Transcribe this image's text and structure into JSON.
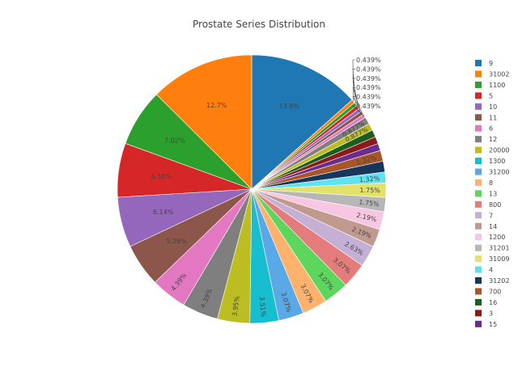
{
  "chart_data": {
    "type": "pie",
    "title": "Prostate Series Distribution",
    "slices": [
      {
        "label": "9",
        "value": 13.6,
        "text": "13.6%",
        "color": "#1f77b4"
      },
      {
        "label": "",
        "value": 0.439,
        "text": "0.439%",
        "color": "#ff7f0e"
      },
      {
        "label": "",
        "value": 0.439,
        "text": "0.439%",
        "color": "#2ca02c"
      },
      {
        "label": "",
        "value": 0.439,
        "text": "0.439%",
        "color": "#d62728"
      },
      {
        "label": "",
        "value": 0.439,
        "text": "0.439%",
        "color": "#9467bd"
      },
      {
        "label": "",
        "value": 0.439,
        "text": "0.439%",
        "color": "#8c564b"
      },
      {
        "label": "",
        "value": 0.439,
        "text": "0.439%",
        "color": "#e377c2"
      },
      {
        "label": "",
        "value": 0.877,
        "text": "0.877%",
        "color": "#7f7f7f"
      },
      {
        "label": "",
        "value": 0.877,
        "text": "0.877%",
        "color": "#bcbd22"
      },
      {
        "label": "16",
        "value": 0.877,
        "text": "",
        "color": "#1b5e20"
      },
      {
        "label": "3",
        "value": 0.877,
        "text": "",
        "color": "#8b1a1a"
      },
      {
        "label": "15",
        "value": 0.877,
        "text": "",
        "color": "#6a2c8f"
      },
      {
        "label": "700",
        "value": 1.32,
        "text": "1.32%",
        "color": "#a65628"
      },
      {
        "label": "31202",
        "value": 1.32,
        "text": "",
        "color": "#16365c"
      },
      {
        "label": "4",
        "value": 1.32,
        "text": "1.32%",
        "color": "#5de3f0"
      },
      {
        "label": "31009",
        "value": 1.75,
        "text": "1.75%",
        "color": "#e2e26b"
      },
      {
        "label": "31201",
        "value": 1.75,
        "text": "1.75%",
        "color": "#b7b7b7"
      },
      {
        "label": "1200",
        "value": 2.19,
        "text": "2.19%",
        "color": "#f7c6e3"
      },
      {
        "label": "14",
        "value": 2.19,
        "text": "2.19%",
        "color": "#c09a8e"
      },
      {
        "label": "7",
        "value": 2.63,
        "text": "2.63%",
        "color": "#c5b0d5"
      },
      {
        "label": "800",
        "value": 3.07,
        "text": "3.07%",
        "color": "#e57c7c"
      },
      {
        "label": "13",
        "value": 3.07,
        "text": "3.07%",
        "color": "#5cd65c"
      },
      {
        "label": "8",
        "value": 3.07,
        "text": "3.07%",
        "color": "#ffb26b"
      },
      {
        "label": "31200",
        "value": 3.07,
        "text": "3.07%",
        "color": "#5aa9e6"
      },
      {
        "label": "1300",
        "value": 3.51,
        "text": "3.51%",
        "color": "#17becf"
      },
      {
        "label": "20000",
        "value": 3.95,
        "text": "3.95%",
        "color": "#bcbd22"
      },
      {
        "label": "12",
        "value": 4.39,
        "text": "4.39%",
        "color": "#7f7f7f"
      },
      {
        "label": "6",
        "value": 4.39,
        "text": "4.39%",
        "color": "#e377c2"
      },
      {
        "label": "11",
        "value": 5.26,
        "text": "5.26%",
        "color": "#8c564b"
      },
      {
        "label": "10",
        "value": 6.14,
        "text": "6.14%",
        "color": "#9467bd"
      },
      {
        "label": "5",
        "value": 6.58,
        "text": "6.58%",
        "color": "#d62728"
      },
      {
        "label": "1100",
        "value": 7.02,
        "text": "7.02%",
        "color": "#2ca02c"
      },
      {
        "label": "31002",
        "value": 12.7,
        "text": "12.7%",
        "color": "#ff7f0e"
      }
    ],
    "legend": [
      {
        "label": "9",
        "color": "#1f77b4"
      },
      {
        "label": "31002",
        "color": "#ff7f0e"
      },
      {
        "label": "1100",
        "color": "#2ca02c"
      },
      {
        "label": "5",
        "color": "#d62728"
      },
      {
        "label": "10",
        "color": "#9467bd"
      },
      {
        "label": "11",
        "color": "#8c564b"
      },
      {
        "label": "6",
        "color": "#e377c2"
      },
      {
        "label": "12",
        "color": "#7f7f7f"
      },
      {
        "label": "20000",
        "color": "#bcbd22"
      },
      {
        "label": "1300",
        "color": "#17becf"
      },
      {
        "label": "31200",
        "color": "#5aa9e6"
      },
      {
        "label": "8",
        "color": "#ffb26b"
      },
      {
        "label": "13",
        "color": "#5cd65c"
      },
      {
        "label": "800",
        "color": "#e57c7c"
      },
      {
        "label": "7",
        "color": "#c5b0d5"
      },
      {
        "label": "14",
        "color": "#c09a8e"
      },
      {
        "label": "1200",
        "color": "#f7c6e3"
      },
      {
        "label": "31201",
        "color": "#b7b7b7"
      },
      {
        "label": "31009",
        "color": "#e2e26b"
      },
      {
        "label": "4",
        "color": "#5de3f0"
      },
      {
        "label": "31202",
        "color": "#16365c"
      },
      {
        "label": "700",
        "color": "#a65628"
      },
      {
        "label": "16",
        "color": "#1b5e20"
      },
      {
        "label": "3",
        "color": "#8b1a1a"
      },
      {
        "label": "15",
        "color": "#6a2c8f"
      }
    ],
    "legend_position": "right"
  }
}
